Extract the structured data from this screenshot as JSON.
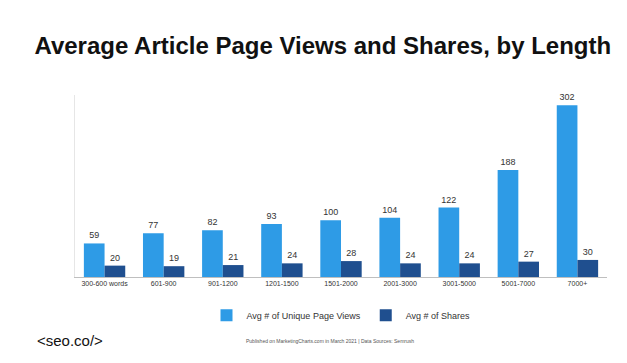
{
  "chart_data": {
    "type": "bar",
    "title": "Average Article Page Views and Shares, by Length",
    "categories": [
      "300-600 words",
      "601-900",
      "901-1200",
      "1201-1500",
      "1501-2000",
      "2001-3000",
      "3001-5000",
      "5001-7000",
      "7000+"
    ],
    "series": [
      {
        "name": "Avg # of Unique Page Views",
        "color": "#2e9be6",
        "values": [
          59,
          77,
          82,
          93,
          100,
          104,
          122,
          188,
          302
        ]
      },
      {
        "name": "Avg # of Shares",
        "color": "#1f4f8f",
        "values": [
          20,
          19,
          21,
          24,
          28,
          24,
          24,
          27,
          30
        ]
      }
    ],
    "ylim": [
      0,
      320
    ],
    "yticks": [],
    "grid": false,
    "legend": "bottom",
    "data_labels": true,
    "tick_labels": "x",
    "annotations": [
      "<seo.co/>",
      "Published on MarketingCharts.com in March 2021 | Data Sources: Semrush"
    ]
  }
}
